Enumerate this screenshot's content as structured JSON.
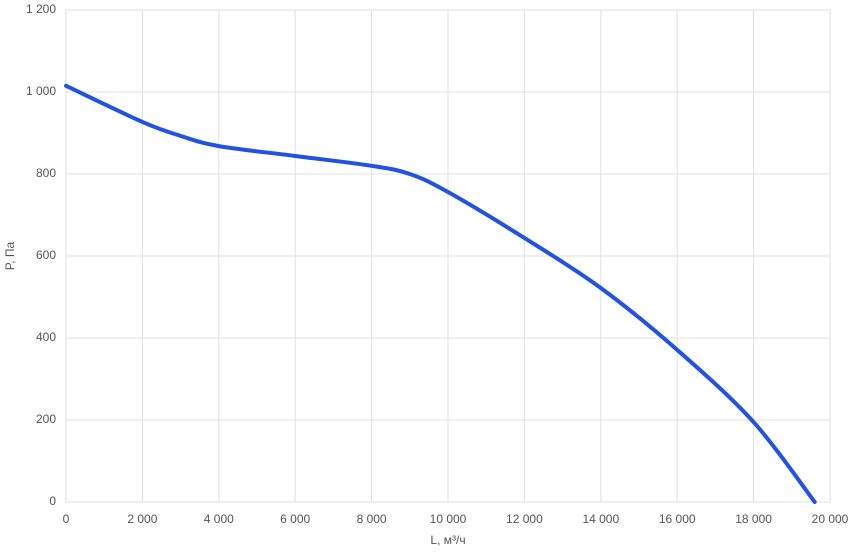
{
  "chart_data": {
    "type": "line",
    "x_label": "L, м³/ч",
    "y_label": "P, Па",
    "x": [
      0,
      2000,
      3000,
      4000,
      6000,
      8000,
      9000,
      10000,
      12000,
      14000,
      16000,
      18000,
      19600
    ],
    "series": [
      {
        "name": "P",
        "color": "#2251e6",
        "values": [
          1015,
          927,
          893,
          868,
          844,
          820,
          800,
          756,
          644,
          522,
          371,
          195,
          0
        ]
      }
    ],
    "xlim": [
      0,
      20000
    ],
    "ylim": [
      0,
      1200
    ],
    "xticks": [
      0,
      {
        "value": 2000,
        "label": "2 000"
      },
      {
        "value": 4000,
        "label": "4 000"
      },
      {
        "value": 6000,
        "label": "6 000"
      },
      {
        "value": 8000,
        "label": "8 000"
      },
      {
        "value": 10000,
        "label": "10 000"
      },
      {
        "value": 12000,
        "label": "12 000"
      },
      {
        "value": 14000,
        "label": "14 000"
      },
      {
        "value": 16000,
        "label": "16 000"
      },
      {
        "value": 18000,
        "label": "18 000"
      },
      {
        "value": 20000,
        "label": "20 000"
      }
    ],
    "yticks": [
      0,
      200,
      400,
      600,
      800,
      {
        "value": 1000,
        "label": "1 000"
      },
      {
        "value": 1200,
        "label": "1 200"
      }
    ],
    "grid": true
  }
}
